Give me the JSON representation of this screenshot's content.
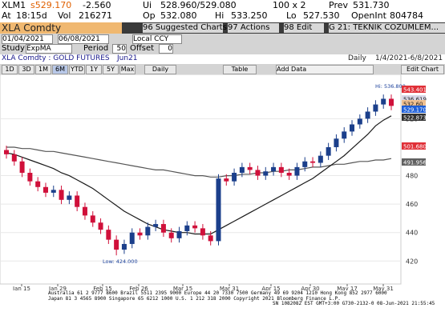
{
  "quote": {
    "ticker": "XLM1",
    "last": "s529.170",
    "change": "-2.560",
    "bidask_label": "Ui",
    "bidask": "528.960/529.080",
    "size": "100 x 2",
    "prev_label": "Prev",
    "prev": "531.730",
    "time_label": "At",
    "time": "18:15d",
    "vol_label": "Vol",
    "vol": "216271",
    "op_label": "Op",
    "op": "532.080",
    "hi_label": "Hi",
    "hi": "533.250",
    "lo_label": "Lo",
    "lo": "527.530",
    "oi_label": "OpenInt",
    "oi": "804784"
  },
  "security": "XLA Comdty",
  "toolbar": [
    "96 Suggested Charts",
    "97 Actions",
    "98 Edit",
    "G 21: TEKNIK COZUMLEM..."
  ],
  "range": {
    "start": "01/04/2021",
    "end": "06/08/2021",
    "currency": "Local CCY"
  },
  "study": {
    "label": "Study",
    "name": "ExpMA",
    "period_label": "Period",
    "period": "50",
    "offset_label": "Offset",
    "offset": "0"
  },
  "info": {
    "name": "XLA Comdty : GOLD FUTURES",
    "contract": "Jun21",
    "frequency": "Daily",
    "dates": "1/4/2021-6/8/2021"
  },
  "buttons": [
    "1D",
    "3D",
    "1M",
    "6M",
    "YTD",
    "1Y",
    "5Y",
    "Max"
  ],
  "freq_select": "Daily",
  "table_button": "Table",
  "add_data": "Add Data",
  "edit_chart": "Edit Chart",
  "price_labels": [
    {
      "text": "543.401",
      "color": "#e03038"
    },
    {
      "text": "536.619",
      "color": "#d8d8e8"
    },
    {
      "text": "532.60",
      "color": "#f0c090"
    },
    {
      "text": "529.170",
      "color": "#1e5fd8"
    },
    {
      "text": "522.873",
      "color": "#303030"
    },
    {
      "text": "501.680",
      "color": "#e03038"
    },
    {
      "text": "491.956",
      "color": "#606060"
    }
  ],
  "footer": [
    "Australia 61 2 9777 8600 Brazil 5511 2395 9000 Europe 44 20 7330 7500 Germany 49 69 9204 1210 Hong Kong 852 2977 6000",
    "Japan 81 3 4565 8900 Singapore 65 6212 1000 U.S. 1 212 318 2000 Copyright 2021 Bloomberg Finance L.P.",
    "SN 1082082 EST GMT+3:00 G730-2132-0 08-Jun-2021 21:55:45"
  ],
  "chart_data": {
    "type": "candlestick",
    "x_labels": [
      "Jan 15",
      "Jan 29",
      "Feb 15",
      "Feb 26",
      "Mar 15",
      "Mar 31",
      "Apr 15",
      "Apr 30",
      "May 17",
      "May 31"
    ],
    "year_label": "2021",
    "annotations": {
      "low": "Low: 424.000",
      "high": "Hi: 536.800"
    },
    "up_color": "#1b3f8b",
    "down_color": "#d0103a",
    "open": [
      498,
      495,
      490,
      482,
      476,
      472,
      468,
      470,
      463,
      466,
      458,
      452,
      447,
      442,
      435,
      428,
      432,
      440,
      438,
      444,
      446,
      440,
      436,
      441,
      445,
      443,
      438,
      434,
      478,
      476,
      482,
      486,
      484,
      480,
      483,
      486,
      482,
      480,
      486,
      490,
      489,
      494,
      500,
      506,
      511,
      516,
      520,
      525,
      530,
      534
    ],
    "high": [
      501,
      498,
      493,
      485,
      479,
      475,
      473,
      473,
      469,
      469,
      461,
      455,
      450,
      445,
      438,
      435,
      443,
      443,
      447,
      449,
      449,
      443,
      444,
      448,
      448,
      446,
      441,
      481,
      481,
      485,
      489,
      489,
      487,
      486,
      489,
      489,
      485,
      489,
      493,
      493,
      497,
      503,
      509,
      514,
      519,
      523,
      528,
      533,
      537,
      537
    ],
    "low": [
      492,
      487,
      479,
      473,
      469,
      465,
      465,
      460,
      460,
      455,
      449,
      444,
      439,
      432,
      424,
      425,
      429,
      435,
      435,
      441,
      437,
      433,
      433,
      438,
      440,
      435,
      431,
      431,
      473,
      473,
      479,
      481,
      477,
      477,
      480,
      479,
      477,
      477,
      483,
      486,
      486,
      491,
      497,
      503,
      508,
      513,
      517,
      522,
      527,
      526
    ],
    "close": [
      495,
      490,
      482,
      476,
      472,
      468,
      470,
      463,
      466,
      458,
      452,
      447,
      442,
      435,
      428,
      432,
      440,
      438,
      444,
      446,
      440,
      436,
      441,
      445,
      443,
      438,
      434,
      478,
      476,
      482,
      486,
      484,
      480,
      483,
      486,
      482,
      480,
      486,
      490,
      489,
      494,
      500,
      506,
      511,
      516,
      520,
      525,
      530,
      534,
      529
    ],
    "series": [
      {
        "color": "#555555",
        "values": [
          500,
          500,
          499,
          499,
          498,
          497,
          497,
          496,
          495,
          494,
          493,
          492,
          491,
          490,
          489,
          488,
          487,
          486,
          485,
          484,
          484,
          483,
          482,
          481,
          480,
          480,
          479,
          479,
          480,
          480,
          481,
          481,
          482,
          482,
          483,
          483,
          484,
          484,
          485,
          486,
          486,
          487,
          488,
          488,
          489,
          490,
          490,
          491,
          491,
          492
        ]
      },
      {
        "color": "#1a1a1a",
        "values": [
          496,
          495,
          493,
          491,
          489,
          487,
          485,
          482,
          480,
          477,
          474,
          471,
          467,
          463,
          459,
          455,
          452,
          449,
          446,
          444,
          442,
          441,
          440,
          440,
          439,
          439,
          439,
          442,
          445,
          448,
          451,
          454,
          457,
          460,
          463,
          466,
          469,
          472,
          475,
          478,
          482,
          486,
          490,
          494,
          499,
          504,
          509,
          515,
          519,
          522
        ]
      }
    ],
    "ylim": [
      405,
      550
    ],
    "yticks": [
      420,
      440,
      460,
      480,
      520
    ],
    "grid": true
  }
}
